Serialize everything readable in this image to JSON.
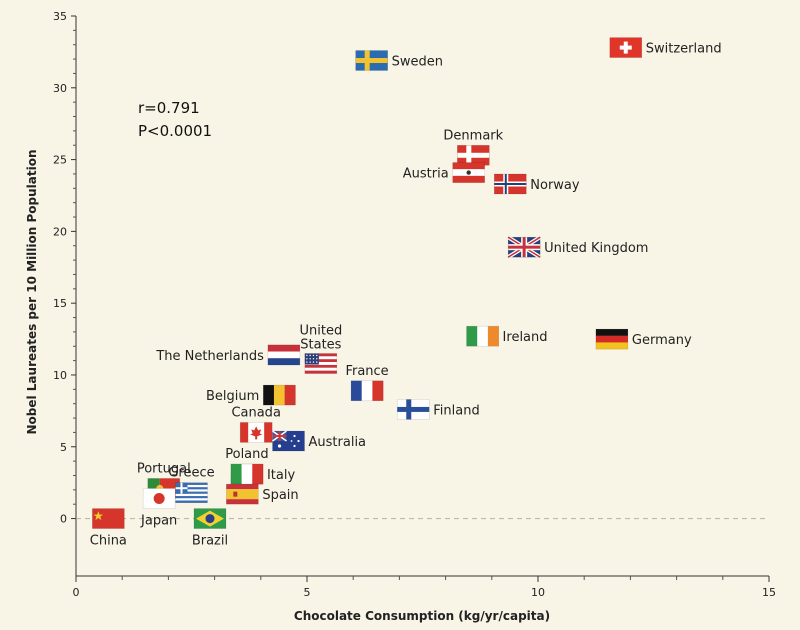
{
  "chart_data": {
    "type": "scatter",
    "xlabel": "Chocolate Consumption (kg/yr/capita)",
    "ylabel": "Nobel Laureates per 10 Million Population",
    "xlim": [
      0,
      15
    ],
    "ylim": [
      -4,
      35
    ],
    "x_ticks": [
      0,
      5,
      10,
      15
    ],
    "y_ticks": [
      0,
      5,
      10,
      15,
      20,
      25,
      30,
      35
    ],
    "grid": false,
    "zero_line": true,
    "annotations": [
      "r=0.791",
      "P<0.0001"
    ],
    "points": [
      {
        "label": "Switzerland",
        "x": 11.9,
        "y": 32.8,
        "flag": "switzerland",
        "label_pos": "right"
      },
      {
        "label": "Sweden",
        "x": 6.4,
        "y": 31.9,
        "flag": "sweden",
        "label_pos": "right"
      },
      {
        "label": "Denmark",
        "x": 8.6,
        "y": 25.3,
        "flag": "denmark",
        "label_pos": "above"
      },
      {
        "label": "Austria",
        "x": 8.5,
        "y": 24.1,
        "flag": "austria",
        "label_pos": "left"
      },
      {
        "label": "Norway",
        "x": 9.4,
        "y": 23.3,
        "flag": "norway",
        "label_pos": "right"
      },
      {
        "label": "United Kingdom",
        "x": 9.7,
        "y": 18.9,
        "flag": "uk",
        "label_pos": "right"
      },
      {
        "label": "Ireland",
        "x": 8.8,
        "y": 12.7,
        "flag": "ireland",
        "label_pos": "right"
      },
      {
        "label": "Germany",
        "x": 11.6,
        "y": 12.5,
        "flag": "germany",
        "label_pos": "right"
      },
      {
        "label": "The Netherlands",
        "x": 4.5,
        "y": 11.4,
        "flag": "netherlands",
        "label_pos": "left"
      },
      {
        "label": "United States",
        "x": 5.3,
        "y": 10.8,
        "flag": "usa",
        "label_pos": "above"
      },
      {
        "label": "France",
        "x": 6.3,
        "y": 8.9,
        "flag": "france",
        "label_pos": "above"
      },
      {
        "label": "Belgium",
        "x": 4.4,
        "y": 8.6,
        "flag": "belgium",
        "label_pos": "left"
      },
      {
        "label": "Finland",
        "x": 7.3,
        "y": 7.6,
        "flag": "finland",
        "label_pos": "right"
      },
      {
        "label": "Canada",
        "x": 3.9,
        "y": 6.0,
        "flag": "canada",
        "label_pos": "above"
      },
      {
        "label": "Australia",
        "x": 4.6,
        "y": 5.4,
        "flag": "australia",
        "label_pos": "right"
      },
      {
        "label": "Poland",
        "x": 3.7,
        "y": 3.1,
        "flag": "poland",
        "label_pos": "above"
      },
      {
        "label": "Italy",
        "x": 3.7,
        "y": 3.1,
        "flag": "italy",
        "label_pos": "right"
      },
      {
        "label": "Spain",
        "x": 3.6,
        "y": 1.7,
        "flag": "spain",
        "label_pos": "right"
      },
      {
        "label": "Portugal",
        "x": 1.9,
        "y": 2.1,
        "flag": "portugal",
        "label_pos": "above"
      },
      {
        "label": "Greece",
        "x": 2.5,
        "y": 1.8,
        "flag": "greece",
        "label_pos": "above"
      },
      {
        "label": "Japan",
        "x": 1.8,
        "y": 1.4,
        "flag": "japan",
        "label_pos": "below"
      },
      {
        "label": "Brazil",
        "x": 2.9,
        "y": 0.0,
        "flag": "brazil",
        "label_pos": "below"
      },
      {
        "label": "China",
        "x": 0.7,
        "y": 0.0,
        "flag": "china",
        "label_pos": "below"
      }
    ]
  }
}
